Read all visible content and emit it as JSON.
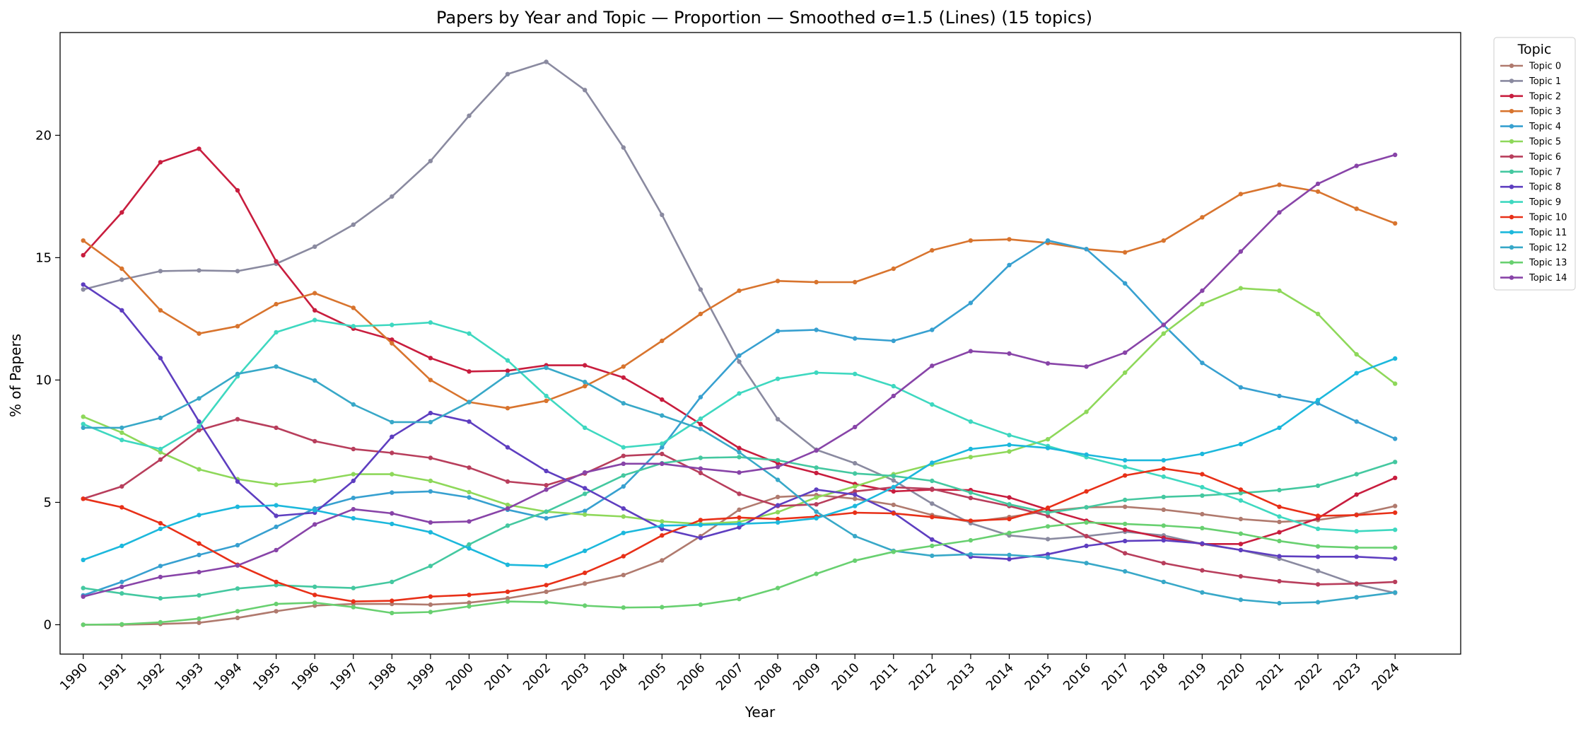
{
  "chart_data": {
    "type": "line",
    "title": "Papers by Year and Topic — Proportion — Smoothed σ=1.5 (Lines) (15 topics)",
    "xlabel": "Year",
    "ylabel": "% of Papers",
    "xlim": [
      1989.4,
      2025.7
    ],
    "ylim": [
      -1.2,
      24.2
    ],
    "yticks": [
      0,
      5,
      10,
      15,
      20
    ],
    "grid": false,
    "legend": {
      "title": "Topic",
      "placement": "outside-right"
    },
    "x": [
      1990,
      1991,
      1992,
      1993,
      1994,
      1995,
      1996,
      1997,
      1998,
      1999,
      2000,
      2001,
      2002,
      2003,
      2004,
      2005,
      2006,
      2007,
      2008,
      2009,
      2010,
      2011,
      2012,
      2013,
      2014,
      2015,
      2016,
      2017,
      2018,
      2019,
      2020,
      2021,
      2022,
      2023,
      2024
    ],
    "series": [
      {
        "name": "Topic 0",
        "color": "#b07a6e",
        "values": [
          0.0,
          0.0,
          0.03,
          0.08,
          0.28,
          0.55,
          0.78,
          0.85,
          0.85,
          0.82,
          0.9,
          1.08,
          1.35,
          1.68,
          2.03,
          2.63,
          3.62,
          4.7,
          5.22,
          5.3,
          5.15,
          4.9,
          4.48,
          4.2,
          4.4,
          4.65,
          4.8,
          4.82,
          4.7,
          4.52,
          4.32,
          4.2,
          4.28,
          4.5,
          4.85
        ]
      },
      {
        "name": "Topic 1",
        "color": "#8a8aa0",
        "values": [
          13.7,
          14.1,
          14.45,
          14.48,
          14.45,
          14.75,
          15.45,
          16.35,
          17.5,
          18.95,
          20.8,
          22.5,
          23.0,
          21.85,
          19.5,
          16.75,
          13.7,
          10.75,
          8.4,
          7.15,
          6.6,
          5.9,
          4.95,
          4.15,
          3.65,
          3.5,
          3.62,
          3.8,
          3.65,
          3.3,
          3.05,
          2.7,
          2.2,
          1.65,
          1.3
        ]
      },
      {
        "name": "Topic 2",
        "color": "#c81d3e",
        "values": [
          15.1,
          16.85,
          18.9,
          19.45,
          17.75,
          14.85,
          12.85,
          12.1,
          11.65,
          10.9,
          10.35,
          10.38,
          10.6,
          10.6,
          10.1,
          9.2,
          8.2,
          7.22,
          6.6,
          6.2,
          5.75,
          5.45,
          5.52,
          5.5,
          5.2,
          4.7,
          4.25,
          3.88,
          3.55,
          3.3,
          3.3,
          3.78,
          4.35,
          5.32,
          6.0
        ]
      },
      {
        "name": "Topic 3",
        "color": "#d8742e",
        "values": [
          15.7,
          14.55,
          12.85,
          11.9,
          12.2,
          13.1,
          13.55,
          12.95,
          11.5,
          10.0,
          9.1,
          8.85,
          9.15,
          9.75,
          10.55,
          11.6,
          12.7,
          13.65,
          14.05,
          14.0,
          14.0,
          14.55,
          15.3,
          15.7,
          15.75,
          15.6,
          15.35,
          15.22,
          15.7,
          16.65,
          17.6,
          17.98,
          17.7,
          17.0,
          16.4
        ]
      },
      {
        "name": "Topic 4",
        "color": "#37a0d0",
        "values": [
          1.2,
          1.75,
          2.4,
          2.85,
          3.25,
          4.0,
          4.75,
          5.18,
          5.4,
          5.45,
          5.2,
          4.7,
          4.35,
          4.65,
          5.65,
          7.25,
          9.3,
          11.0,
          12.0,
          12.05,
          11.7,
          11.6,
          12.05,
          13.15,
          14.7,
          15.7,
          15.35,
          13.95,
          12.25,
          10.7,
          9.7,
          9.35,
          9.05,
          8.3,
          7.6
        ]
      },
      {
        "name": "Topic 5",
        "color": "#8ed85a",
        "values": [
          8.5,
          7.85,
          7.05,
          6.35,
          5.95,
          5.72,
          5.88,
          6.15,
          6.15,
          5.88,
          5.42,
          4.9,
          4.62,
          4.5,
          4.42,
          4.22,
          4.12,
          4.2,
          4.6,
          5.2,
          5.65,
          6.15,
          6.55,
          6.85,
          7.08,
          7.58,
          8.7,
          10.3,
          11.9,
          13.1,
          13.75,
          13.65,
          12.7,
          11.05,
          9.85
        ]
      },
      {
        "name": "Topic 6",
        "color": "#b83e5c",
        "values": [
          5.15,
          5.65,
          6.75,
          7.95,
          8.4,
          8.05,
          7.5,
          7.18,
          7.02,
          6.82,
          6.42,
          5.85,
          5.7,
          6.18,
          6.9,
          6.98,
          6.2,
          5.35,
          4.85,
          4.92,
          5.45,
          5.62,
          5.55,
          5.18,
          4.85,
          4.45,
          3.62,
          2.92,
          2.52,
          2.22,
          1.98,
          1.78,
          1.65,
          1.68,
          1.75
        ]
      },
      {
        "name": "Topic 7",
        "color": "#44c8a0",
        "values": [
          1.5,
          1.28,
          1.08,
          1.2,
          1.48,
          1.62,
          1.55,
          1.5,
          1.75,
          2.4,
          3.28,
          4.05,
          4.62,
          5.35,
          6.1,
          6.6,
          6.82,
          6.85,
          6.72,
          6.42,
          6.18,
          6.08,
          5.88,
          5.4,
          4.92,
          4.58,
          4.8,
          5.1,
          5.22,
          5.28,
          5.38,
          5.5,
          5.68,
          6.15,
          6.65
        ]
      },
      {
        "name": "Topic 8",
        "color": "#5e3ec0",
        "values": [
          13.9,
          12.85,
          10.9,
          8.3,
          5.85,
          4.45,
          4.58,
          5.88,
          7.68,
          8.65,
          8.3,
          7.25,
          6.28,
          5.58,
          4.75,
          3.92,
          3.55,
          3.98,
          4.88,
          5.52,
          5.32,
          4.58,
          3.48,
          2.78,
          2.68,
          2.88,
          3.22,
          3.42,
          3.45,
          3.32,
          3.05,
          2.8,
          2.78,
          2.78,
          2.7
        ]
      },
      {
        "name": "Topic 9",
        "color": "#3ed8c0",
        "values": [
          8.2,
          7.55,
          7.18,
          8.1,
          10.15,
          11.95,
          12.45,
          12.2,
          12.25,
          12.35,
          11.9,
          10.8,
          9.35,
          8.05,
          7.25,
          7.4,
          8.42,
          9.45,
          10.05,
          10.3,
          10.25,
          9.75,
          9.0,
          8.3,
          7.75,
          7.3,
          6.85,
          6.45,
          6.05,
          5.62,
          5.08,
          4.42,
          3.92,
          3.82,
          3.88
        ]
      },
      {
        "name": "Topic 10",
        "color": "#e83018",
        "values": [
          5.15,
          4.8,
          4.15,
          3.32,
          2.45,
          1.75,
          1.22,
          0.95,
          0.98,
          1.15,
          1.22,
          1.35,
          1.62,
          2.12,
          2.8,
          3.65,
          4.28,
          4.38,
          4.32,
          4.42,
          4.58,
          4.55,
          4.4,
          4.25,
          4.32,
          4.78,
          5.45,
          6.1,
          6.38,
          6.15,
          5.52,
          4.82,
          4.45,
          4.48,
          4.58
        ]
      },
      {
        "name": "Topic 11",
        "color": "#1cb8dc",
        "values": [
          2.65,
          3.22,
          3.92,
          4.48,
          4.82,
          4.88,
          4.68,
          4.35,
          4.12,
          3.78,
          3.12,
          2.45,
          2.4,
          3.02,
          3.75,
          4.05,
          4.08,
          4.12,
          4.18,
          4.35,
          4.85,
          5.62,
          6.62,
          7.18,
          7.35,
          7.22,
          6.95,
          6.72,
          6.72,
          6.98,
          7.38,
          8.05,
          9.18,
          10.28,
          10.88
        ]
      },
      {
        "name": "Topic 12",
        "color": "#38a8c8",
        "values": [
          8.05,
          8.05,
          8.45,
          9.25,
          10.25,
          10.55,
          9.98,
          9.0,
          8.28,
          8.28,
          9.1,
          10.22,
          10.5,
          9.92,
          9.05,
          8.55,
          8.0,
          7.05,
          5.92,
          4.62,
          3.62,
          3.02,
          2.82,
          2.88,
          2.85,
          2.75,
          2.52,
          2.18,
          1.75,
          1.32,
          1.02,
          0.88,
          0.92,
          1.12,
          1.32
        ]
      },
      {
        "name": "Topic 13",
        "color": "#68d070",
        "values": [
          0.0,
          0.02,
          0.1,
          0.25,
          0.55,
          0.85,
          0.9,
          0.72,
          0.48,
          0.52,
          0.75,
          0.95,
          0.92,
          0.78,
          0.7,
          0.72,
          0.82,
          1.05,
          1.5,
          2.08,
          2.62,
          2.98,
          3.22,
          3.45,
          3.75,
          4.02,
          4.18,
          4.12,
          4.05,
          3.95,
          3.72,
          3.42,
          3.2,
          3.15,
          3.15
        ]
      },
      {
        "name": "Topic 14",
        "color": "#8844a8",
        "values": [
          1.15,
          1.55,
          1.95,
          2.15,
          2.42,
          3.05,
          4.1,
          4.72,
          4.55,
          4.18,
          4.22,
          4.75,
          5.52,
          6.22,
          6.58,
          6.58,
          6.38,
          6.22,
          6.45,
          7.12,
          8.08,
          9.35,
          10.58,
          11.18,
          11.08,
          10.68,
          10.55,
          11.12,
          12.25,
          13.65,
          15.25,
          16.85,
          18.02,
          18.75,
          19.2
        ]
      }
    ]
  }
}
